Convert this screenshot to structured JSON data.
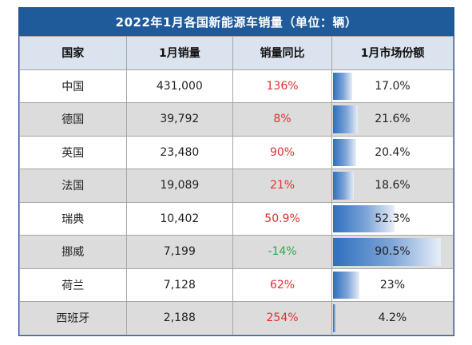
{
  "title": "2022年1月各国新能源车销量（单位：辆）",
  "headers": [
    "国家",
    "1月销量",
    "销量同比",
    "1月市场份额"
  ],
  "rows": [
    {
      "country": "中国",
      "sales": "431,000",
      "yoy": "136%",
      "yoy_dir": "up",
      "share": "17.0%",
      "share_value": 17.0
    },
    {
      "country": "德国",
      "sales": "39,792",
      "yoy": "8%",
      "yoy_dir": "up",
      "share": "21.6%",
      "share_value": 21.6
    },
    {
      "country": "英国",
      "sales": "23,480",
      "yoy": "90%",
      "yoy_dir": "up",
      "share": "20.4%",
      "share_value": 20.4
    },
    {
      "country": "法国",
      "sales": "19,089",
      "yoy": "21%",
      "yoy_dir": "up",
      "share": "18.6%",
      "share_value": 18.6
    },
    {
      "country": "瑞典",
      "sales": "10,402",
      "yoy": "50.9%",
      "yoy_dir": "up",
      "share": "52.3%",
      "share_value": 52.3
    },
    {
      "country": "挪威",
      "sales": "7,199",
      "yoy": "-14%",
      "yoy_dir": "down",
      "share": "90.5%",
      "share_value": 90.5
    },
    {
      "country": "荷兰",
      "sales": "7,128",
      "yoy": "62%",
      "yoy_dir": "up",
      "share": "23%",
      "share_value": 23.0
    },
    {
      "country": "西班牙",
      "sales": "2,188",
      "yoy": "254%",
      "yoy_dir": "up",
      "share": "4.2%",
      "share_value": 4.2
    }
  ],
  "colors": {
    "header_bar": "#1f5a9a",
    "up": "#e0302f",
    "down": "#2ea84b",
    "share_bar": "#2f6fbd"
  }
}
